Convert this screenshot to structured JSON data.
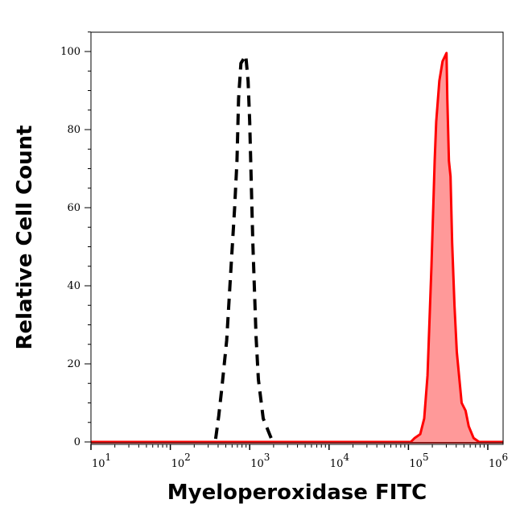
{
  "chart_data": {
    "type": "area",
    "title": "",
    "xlabel": "Myeloperoxidase FITC",
    "ylabel": "Relative Cell Count",
    "x_scale": "log",
    "xlim": [
      10,
      1580000
    ],
    "ylim": [
      0,
      105
    ],
    "x_ticks": [
      {
        "base": "10",
        "exp": "1",
        "value": 10
      },
      {
        "base": "10",
        "exp": "2",
        "value": 100
      },
      {
        "base": "10",
        "exp": "3",
        "value": 1000
      },
      {
        "base": "10",
        "exp": "4",
        "value": 10000
      },
      {
        "base": "10",
        "exp": "5",
        "value": 100000
      },
      {
        "base": "10",
        "exp": "6",
        "value": 1000000
      }
    ],
    "y_ticks": [
      "0",
      "20",
      "40",
      "60",
      "80",
      "100"
    ],
    "grid": false,
    "legend": "none",
    "series": [
      {
        "style": "dashed-black-outline",
        "color": "#000000",
        "points": [
          [
            372,
            0.8
          ],
          [
            407,
            6.6
          ],
          [
            447,
            14
          ],
          [
            513,
            26
          ],
          [
            575,
            43
          ],
          [
            646,
            60
          ],
          [
            692,
            72
          ],
          [
            724,
            88
          ],
          [
            776,
            97
          ],
          [
            891,
            99
          ],
          [
            955,
            92.5
          ],
          [
            1000,
            82
          ],
          [
            1047,
            66
          ],
          [
            1096,
            51
          ],
          [
            1148,
            39
          ],
          [
            1202,
            27
          ],
          [
            1288,
            16
          ],
          [
            1479,
            6
          ],
          [
            1862,
            1
          ]
        ]
      },
      {
        "style": "filled-red",
        "color": "#ff0000",
        "fill": "#ff9999",
        "points": [
          [
            10,
            0
          ],
          [
            107000,
            0
          ],
          [
            120000,
            1
          ],
          [
            141000,
            2
          ],
          [
            158000,
            6
          ],
          [
            174000,
            17
          ],
          [
            195000,
            45
          ],
          [
            214000,
            72
          ],
          [
            224000,
            82
          ],
          [
            245000,
            92.5
          ],
          [
            269000,
            97.5
          ],
          [
            302000,
            99.6
          ],
          [
            309000,
            88
          ],
          [
            324000,
            72
          ],
          [
            339000,
            68
          ],
          [
            355000,
            51
          ],
          [
            380000,
            35
          ],
          [
            407000,
            23
          ],
          [
            468000,
            10
          ],
          [
            525000,
            8
          ],
          [
            575000,
            4
          ],
          [
            661000,
            1
          ],
          [
            776000,
            0
          ],
          [
            1580000,
            0
          ]
        ]
      }
    ]
  }
}
